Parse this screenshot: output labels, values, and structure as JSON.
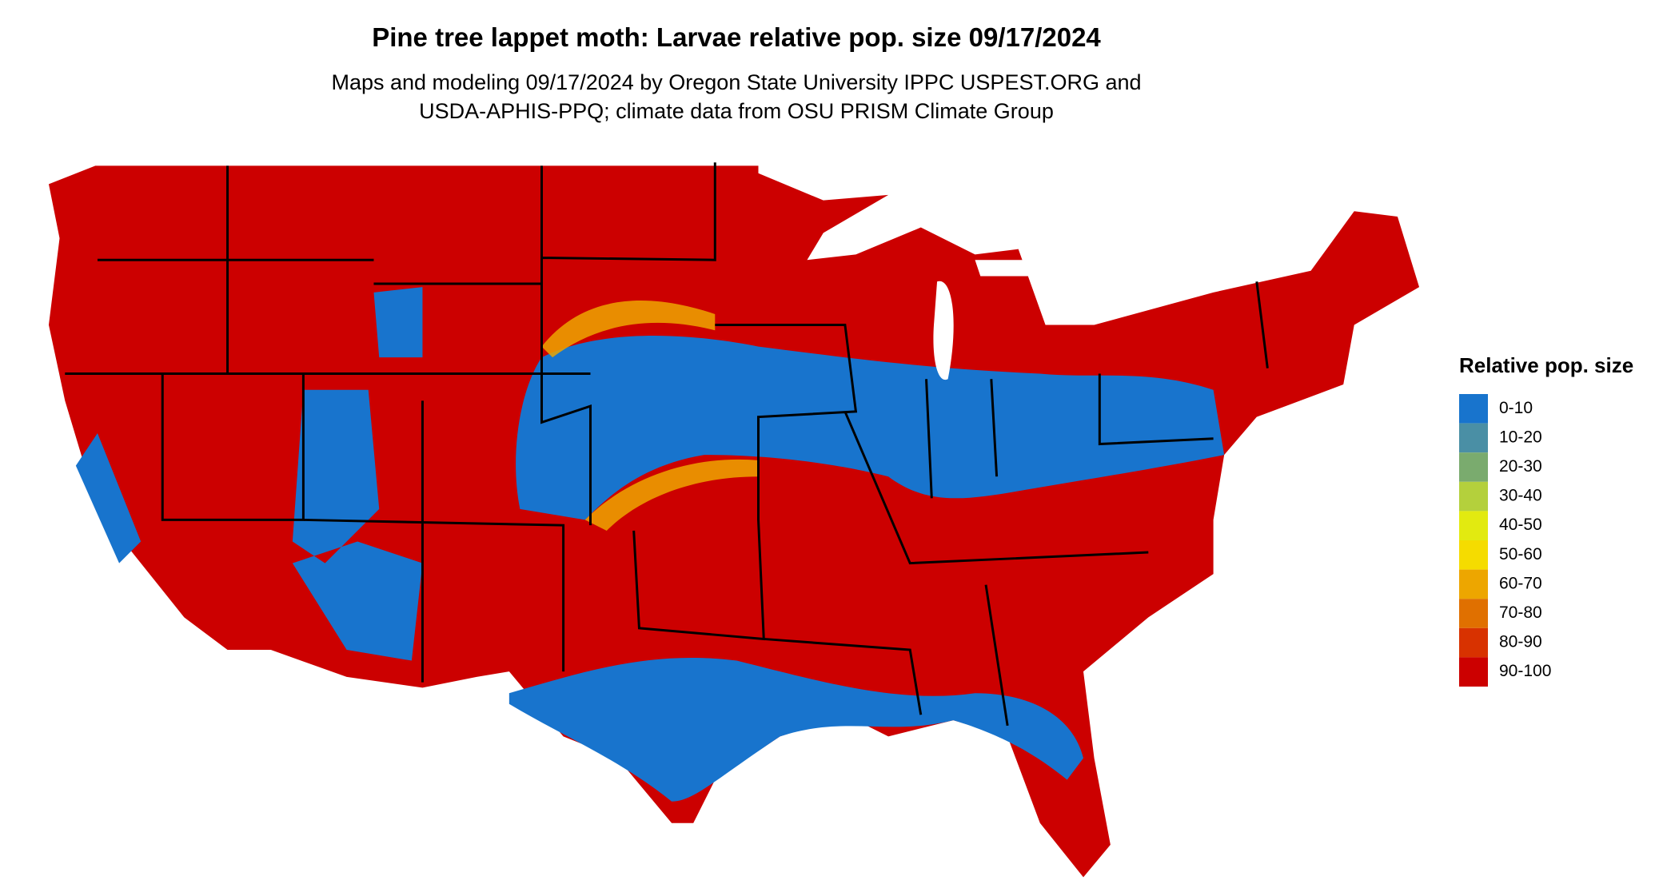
{
  "header": {
    "title": "Pine tree lappet moth: Larvae relative pop. size 09/17/2024",
    "subtitle": [
      "Maps and modeling 09/17/2024 by Oregon State University IPPC USPEST.ORG and",
      "USDA-APHIS-PPQ; climate data from OSU PRISM Climate Group"
    ]
  },
  "legend": {
    "title": "Relative pop. size",
    "items": [
      {
        "label": "0-10",
        "color": "#1874cd"
      },
      {
        "label": "10-20",
        "color": "#4a8fa5"
      },
      {
        "label": "20-30",
        "color": "#7aab6e"
      },
      {
        "label": "30-40",
        "color": "#b4d03c"
      },
      {
        "label": "40-50",
        "color": "#e2ea10"
      },
      {
        "label": "50-60",
        "color": "#f5dc00"
      },
      {
        "label": "60-70",
        "color": "#eda600"
      },
      {
        "label": "70-80",
        "color": "#e07000"
      },
      {
        "label": "80-90",
        "color": "#d83200"
      },
      {
        "label": "90-100",
        "color": "#cc0000"
      }
    ]
  }
}
